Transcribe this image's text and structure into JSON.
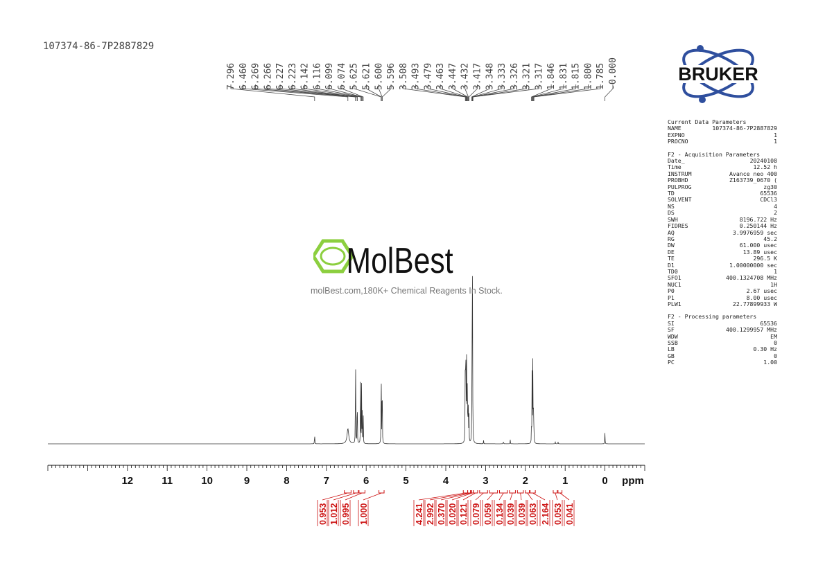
{
  "sample_id": "107374-86-7P2887829",
  "watermark": {
    "logo_text": "MolBest",
    "tagline": "molBest.com,180K+ Chemical Reagents In Stock."
  },
  "brand": {
    "logo_text": "BRUKER",
    "colors": {
      "text": "#111111",
      "orbit": "#2f4f9e",
      "dot": "#2f4f9e"
    }
  },
  "colors": {
    "spectrum": "#333333",
    "integral": "#cc1111",
    "peak_label": "#444444",
    "logo_green": "#8ccf3f"
  },
  "parameters": {
    "current_title": "Current Data Parameters",
    "current": [
      {
        "k": "NAME",
        "v": "107374-86-7P2887829"
      },
      {
        "k": "EXPNO",
        "v": "1"
      },
      {
        "k": "PROCNO",
        "v": "1"
      }
    ],
    "acq_title": "F2 - Acquisition Parameters",
    "acquisition": [
      {
        "k": "Date_",
        "v": "20240108"
      },
      {
        "k": "Time",
        "v": "12.52 h"
      },
      {
        "k": "INSTRUM",
        "v": "Avance neo 400"
      },
      {
        "k": "PROBHD",
        "v": "Z163739_0670 ("
      },
      {
        "k": "PULPROG",
        "v": "zg30"
      },
      {
        "k": "TD",
        "v": "65536"
      },
      {
        "k": "SOLVENT",
        "v": "CDCl3"
      },
      {
        "k": "NS",
        "v": "4"
      },
      {
        "k": "DS",
        "v": "2"
      },
      {
        "k": "SWH",
        "v": "8196.722 Hz"
      },
      {
        "k": "FIDRES",
        "v": "0.250144 Hz"
      },
      {
        "k": "AQ",
        "v": "3.9976959 sec"
      },
      {
        "k": "RG",
        "v": "45.2"
      },
      {
        "k": "DW",
        "v": "61.000 usec"
      },
      {
        "k": "DE",
        "v": "13.89 usec"
      },
      {
        "k": "TE",
        "v": "296.5 K"
      },
      {
        "k": "D1",
        "v": "1.00000000 sec"
      },
      {
        "k": "TD0",
        "v": "1"
      },
      {
        "k": "SFO1",
        "v": "400.1324708 MHz"
      },
      {
        "k": "NUC1",
        "v": "1H"
      },
      {
        "k": "P0",
        "v": "2.67 usec"
      },
      {
        "k": "P1",
        "v": "8.00 usec"
      },
      {
        "k": "PLW1",
        "v": "22.77899933 W"
      }
    ],
    "proc_title": "F2 - Processing parameters",
    "processing": [
      {
        "k": "SI",
        "v": "65536"
      },
      {
        "k": "SF",
        "v": "400.1299957 MHz"
      },
      {
        "k": "WDW",
        "v": "EM"
      },
      {
        "k": "SSB",
        "v": "0"
      },
      {
        "k": "LB",
        "v": "0.30 Hz"
      },
      {
        "k": "GB",
        "v": "0"
      },
      {
        "k": "PC",
        "v": "1.00"
      }
    ]
  },
  "chart_data": {
    "type": "line",
    "xlabel": "ppm",
    "xlim": [
      14.0,
      -1.0
    ],
    "x_ticks": [
      12,
      11,
      10,
      9,
      8,
      7,
      6,
      5,
      4,
      3,
      2,
      1,
      0
    ],
    "x_tick_labels": [
      "12",
      "11",
      "10",
      "9",
      "8",
      "7",
      "6",
      "5",
      "4",
      "3",
      "2",
      "1",
      "0"
    ],
    "peak_labels": [
      "7.296",
      "6.460",
      "6.269",
      "6.266",
      "6.227",
      "6.223",
      "6.142",
      "6.116",
      "6.099",
      "6.074",
      "5.625",
      "5.621",
      "5.600",
      "5.596",
      "3.508",
      "3.493",
      "3.479",
      "3.463",
      "3.447",
      "3.432",
      "3.417",
      "3.348",
      "3.333",
      "3.326",
      "3.321",
      "3.317",
      "1.846",
      "1.831",
      "1.815",
      "1.800",
      "1.785",
      "-0.000"
    ],
    "peaks": [
      {
        "ppm": 7.296,
        "height": 0.04
      },
      {
        "ppm": 6.46,
        "height": 0.045,
        "width": 0.025
      },
      {
        "ppm": 6.269,
        "height": 0.205
      },
      {
        "ppm": 6.266,
        "height": 0.15
      },
      {
        "ppm": 6.227,
        "height": 0.1
      },
      {
        "ppm": 6.223,
        "height": 0.08
      },
      {
        "ppm": 6.142,
        "height": 0.19
      },
      {
        "ppm": 6.116,
        "height": 0.18
      },
      {
        "ppm": 6.099,
        "height": 0.09
      },
      {
        "ppm": 6.074,
        "height": 0.085
      },
      {
        "ppm": 5.625,
        "height": 0.165
      },
      {
        "ppm": 5.621,
        "height": 0.12
      },
      {
        "ppm": 5.6,
        "height": 0.155
      },
      {
        "ppm": 5.596,
        "height": 0.11
      },
      {
        "ppm": 3.508,
        "height": 0.5
      },
      {
        "ppm": 3.493,
        "height": 0.25
      },
      {
        "ppm": 3.479,
        "height": 0.28
      },
      {
        "ppm": 3.463,
        "height": 0.27
      },
      {
        "ppm": 3.447,
        "height": 0.14
      },
      {
        "ppm": 3.432,
        "height": 0.12
      },
      {
        "ppm": 3.417,
        "height": 0.08
      },
      {
        "ppm": 3.348,
        "height": 0.06
      },
      {
        "ppm": 3.333,
        "height": 1.0
      },
      {
        "ppm": 3.326,
        "height": 0.04
      },
      {
        "ppm": 3.321,
        "height": 0.03
      },
      {
        "ppm": 3.317,
        "height": 0.02
      },
      {
        "ppm": 3.05,
        "height": 0.01
      },
      {
        "ppm": 2.55,
        "height": 0.01
      },
      {
        "ppm": 2.38,
        "height": 0.012
      },
      {
        "ppm": 1.846,
        "height": 0.06
      },
      {
        "ppm": 1.831,
        "height": 0.2
      },
      {
        "ppm": 1.815,
        "height": 0.27
      },
      {
        "ppm": 1.8,
        "height": 0.2
      },
      {
        "ppm": 1.785,
        "height": 0.06
      },
      {
        "ppm": 1.25,
        "height": 0.008
      },
      {
        "ppm": 1.18,
        "height": 0.008
      },
      {
        "ppm": 0.0,
        "height": 0.04
      }
    ],
    "integrals": [
      {
        "value": "0.953",
        "from": 6.55,
        "to": 6.38
      },
      {
        "value": "1.012",
        "from": 6.32,
        "to": 6.2
      },
      {
        "value": "0.995",
        "from": 6.18,
        "to": 6.03
      },
      {
        "value": "1.000",
        "from": 5.68,
        "to": 5.55
      },
      {
        "value": "4.241",
        "from": 3.56,
        "to": 3.45
      },
      {
        "value": "2.992",
        "from": 3.45,
        "to": 3.38
      },
      {
        "value": "0.370",
        "from": 3.38,
        "to": 3.35
      },
      {
        "value": "0.020",
        "from": 3.35,
        "to": 3.31
      },
      {
        "value": "0.121",
        "from": 3.31,
        "to": 3.2
      },
      {
        "value": "0.079",
        "from": 3.15,
        "to": 2.95
      },
      {
        "value": "0.059",
        "from": 2.9,
        "to": 2.7
      },
      {
        "value": "0.134",
        "from": 2.65,
        "to": 2.45
      },
      {
        "value": "0.039",
        "from": 2.4,
        "to": 2.25
      },
      {
        "value": "0.039",
        "from": 2.2,
        "to": 2.05
      },
      {
        "value": "0.063",
        "from": 2.0,
        "to": 1.9
      },
      {
        "value": "2.164",
        "from": 1.88,
        "to": 1.75
      },
      {
        "value": "0.053",
        "from": 1.3,
        "to": 1.2
      },
      {
        "value": "0.041",
        "from": 1.18,
        "to": 1.08
      }
    ]
  }
}
